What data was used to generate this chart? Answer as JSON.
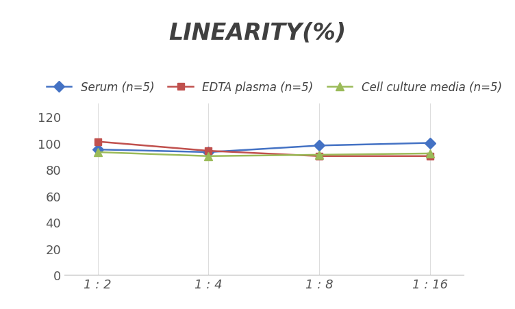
{
  "title": "LINEARITY(%)",
  "x_labels": [
    "1 : 2",
    "1 : 4",
    "1 : 8",
    "1 : 16"
  ],
  "x_positions": [
    0,
    1,
    2,
    3
  ],
  "series": [
    {
      "label": "Serum (n=5)",
      "values": [
        95,
        93,
        98,
        100
      ],
      "color": "#4472C4",
      "marker": "D",
      "marker_size": 8,
      "linewidth": 1.8
    },
    {
      "label": "EDTA plasma (n=5)",
      "values": [
        101,
        94,
        90,
        90
      ],
      "color": "#C0504D",
      "marker": "s",
      "marker_size": 7,
      "linewidth": 1.8
    },
    {
      "label": "Cell culture media (n=5)",
      "values": [
        93,
        90,
        91,
        92
      ],
      "color": "#9BBB59",
      "marker": "^",
      "marker_size": 8,
      "linewidth": 1.8
    }
  ],
  "ylim": [
    0,
    130
  ],
  "yticks": [
    0,
    20,
    40,
    60,
    80,
    100,
    120
  ],
  "grid_color": "#DDDDDD",
  "background_color": "#FFFFFF",
  "title_fontsize": 24,
  "title_color": "#404040",
  "tick_fontsize": 13,
  "legend_fontsize": 12,
  "xlim": [
    -0.3,
    3.3
  ]
}
